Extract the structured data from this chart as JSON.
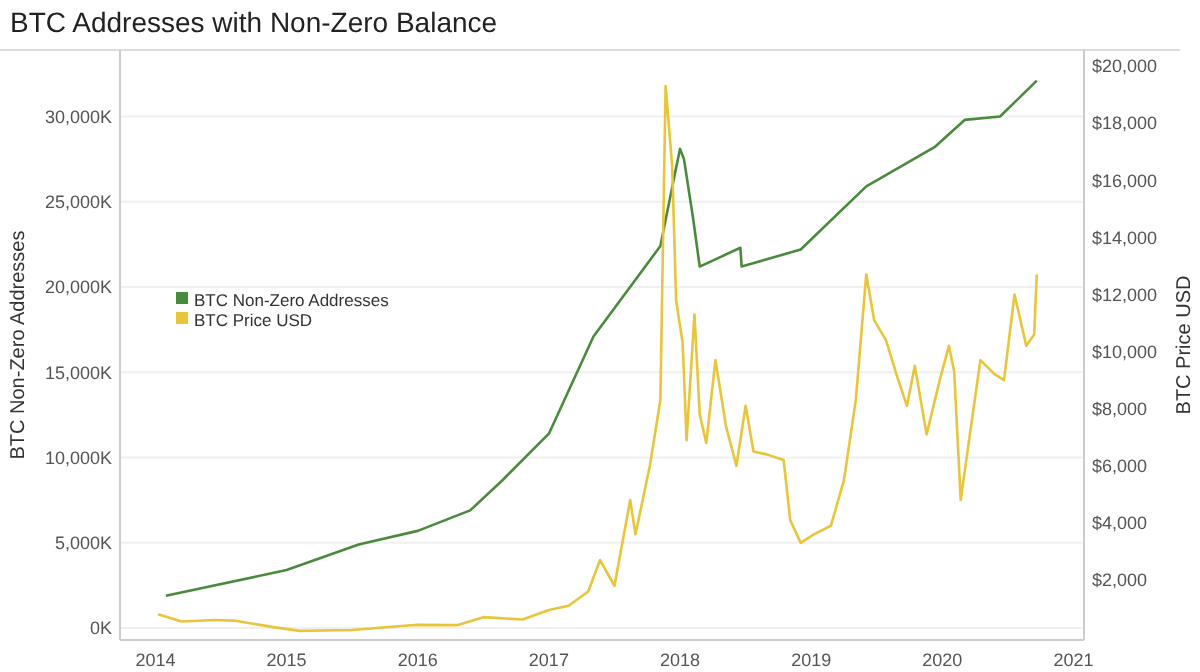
{
  "chart_data": {
    "type": "line",
    "title": "BTC Addresses with Non-Zero Balance",
    "ylabel": "BTC Non-Zero Addresses",
    "y2label": "BTC Price USD",
    "xlim": [
      2013.73,
      2021.08
    ],
    "xticks": [
      2014,
      2015,
      2016,
      2017,
      2018,
      2019,
      2020,
      2021
    ],
    "ylim": [
      -700,
      33900
    ],
    "yticks": [
      {
        "value": 0,
        "label": "0K"
      },
      {
        "value": 5000,
        "label": "5,000K"
      },
      {
        "value": 10000,
        "label": "10,000K"
      },
      {
        "value": 15000,
        "label": "15,000K"
      },
      {
        "value": 20000,
        "label": "20,000K"
      },
      {
        "value": 25000,
        "label": "25,000K"
      },
      {
        "value": 30000,
        "label": "30,000K"
      }
    ],
    "y2lim": [
      -100,
      20560
    ],
    "y2ticks": [
      {
        "value": 2000,
        "label": "$2,000"
      },
      {
        "value": 4000,
        "label": "$4,000"
      },
      {
        "value": 6000,
        "label": "$6,000"
      },
      {
        "value": 8000,
        "label": "$8,000"
      },
      {
        "value": 10000,
        "label": "$10,000"
      },
      {
        "value": 12000,
        "label": "$12,000"
      },
      {
        "value": 14000,
        "label": "$14,000"
      },
      {
        "value": 16000,
        "label": "$16,000"
      },
      {
        "value": 18000,
        "label": "$18,000"
      },
      {
        "value": 20000,
        "label": "$20,000"
      }
    ],
    "grid": "y",
    "legend": "left",
    "marker": "none",
    "line_style": "solid",
    "series": [
      {
        "name": "BTC Non-Zero Addresses",
        "color": "#4a8a3c",
        "x": [
          2014.08,
          2015.0,
          2015.55,
          2016.0,
          2016.4,
          2016.65,
          2017.0,
          2017.34,
          2017.85,
          2017.97,
          2018.0,
          2018.03,
          2018.1,
          2018.15,
          2018.46,
          2018.47,
          2018.92,
          2019.42,
          2019.94,
          2020.17,
          2020.44,
          2020.72
        ],
        "values": [
          1900,
          3400,
          4900,
          5700,
          6900,
          8700,
          11400,
          17100,
          22400,
          27000,
          28100,
          27500,
          24000,
          21200,
          22300,
          21200,
          22200,
          25900,
          28200,
          29800,
          30000,
          32100
        ]
      },
      {
        "name": "BTC Price USD",
        "color": "#e8c53a",
        "axis": "y2",
        "x": [
          2014.02,
          2014.2,
          2014.45,
          2014.6,
          2014.9,
          2015.1,
          2015.5,
          2015.9,
          2016.0,
          2016.3,
          2016.5,
          2016.8,
          2017.0,
          2017.15,
          2017.3,
          2017.39,
          2017.5,
          2017.62,
          2017.66,
          2017.77,
          2017.85,
          2017.89,
          2017.94,
          2017.97,
          2018.02,
          2018.05,
          2018.11,
          2018.15,
          2018.2,
          2018.27,
          2018.35,
          2018.43,
          2018.5,
          2018.56,
          2018.66,
          2018.79,
          2018.84,
          2018.92,
          2019.02,
          2019.15,
          2019.25,
          2019.34,
          2019.42,
          2019.48,
          2019.57,
          2019.65,
          2019.73,
          2019.79,
          2019.88,
          2019.98,
          2020.05,
          2020.09,
          2020.14,
          2020.21,
          2020.29,
          2020.4,
          2020.47,
          2020.55,
          2020.6,
          2020.64,
          2020.7,
          2020.72
        ],
        "values": [
          800,
          550,
          600,
          580,
          350,
          220,
          250,
          400,
          430,
          420,
          700,
          620,
          950,
          1100,
          1600,
          2700,
          1800,
          4800,
          3600,
          6000,
          8300,
          19300,
          16500,
          11800,
          10300,
          6900,
          11300,
          7800,
          6800,
          9700,
          7400,
          6000,
          8100,
          6500,
          6400,
          6200,
          4100,
          3300,
          3600,
          3900,
          5500,
          8300,
          12700,
          11100,
          10400,
          9200,
          8100,
          9500,
          7100,
          9000,
          10200,
          9300,
          4800,
          7100,
          9700,
          9200,
          9000,
          12000,
          11000,
          10200,
          10600,
          12700
        ]
      }
    ]
  }
}
